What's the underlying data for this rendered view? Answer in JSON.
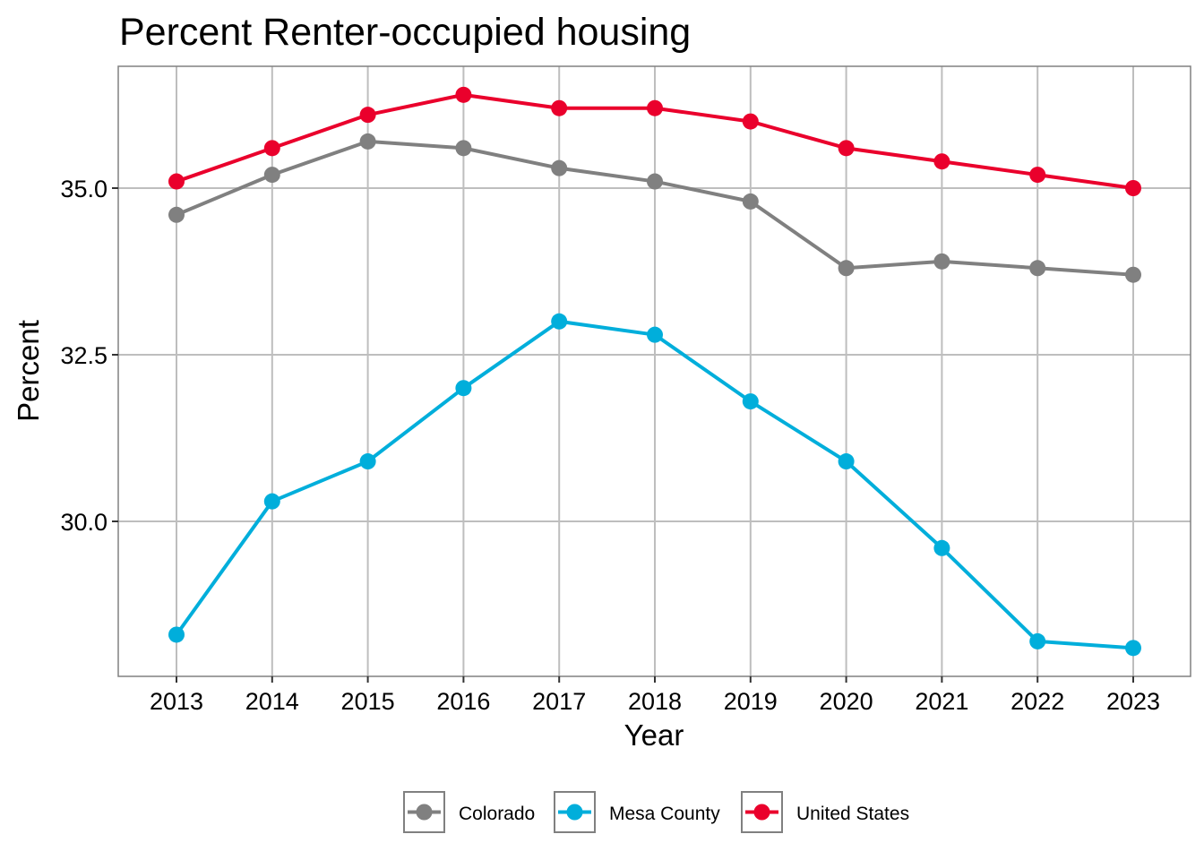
{
  "chart_data": {
    "type": "line",
    "title": "Percent Renter-occupied housing",
    "xlabel": "Year",
    "ylabel": "Percent",
    "x": [
      2013,
      2014,
      2015,
      2016,
      2017,
      2018,
      2019,
      2020,
      2021,
      2022,
      2023
    ],
    "x_tick_labels": [
      "2013",
      "2014",
      "2015",
      "2016",
      "2017",
      "2018",
      "2019",
      "2020",
      "2021",
      "2022",
      "2023"
    ],
    "y_ticks": [
      30.0,
      32.5,
      35.0
    ],
    "y_tick_labels": [
      "30.0",
      "32.5",
      "35.0"
    ],
    "ylim": [
      27.7,
      36.8
    ],
    "grid": true,
    "legend_position": "bottom",
    "series": [
      {
        "name": "Colorado",
        "color": "#808080",
        "values": [
          34.6,
          35.2,
          35.7,
          35.6,
          35.3,
          35.1,
          34.8,
          33.8,
          33.9,
          33.8,
          33.7
        ]
      },
      {
        "name": "Mesa County",
        "color": "#00AEDB",
        "values": [
          28.3,
          30.3,
          30.9,
          32.0,
          33.0,
          32.8,
          31.8,
          30.9,
          29.6,
          28.2,
          28.1
        ]
      },
      {
        "name": "United States",
        "color": "#EA002C",
        "values": [
          35.1,
          35.6,
          36.1,
          36.4,
          36.2,
          36.2,
          36.0,
          35.6,
          35.4,
          35.2,
          35.0
        ]
      }
    ]
  }
}
